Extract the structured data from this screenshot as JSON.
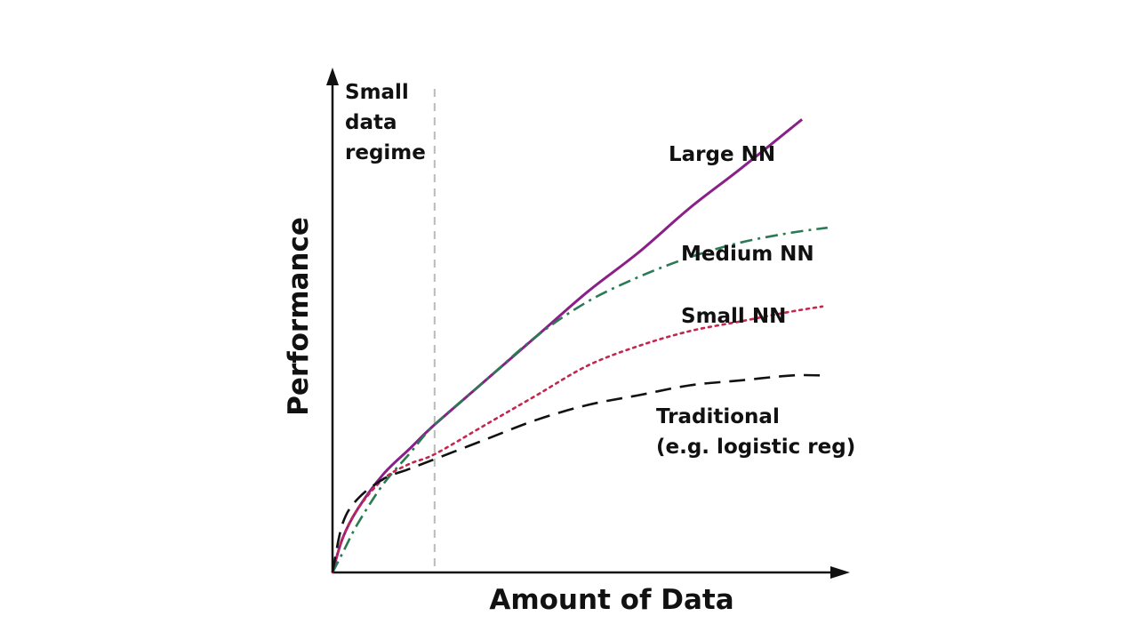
{
  "chart_data": {
    "type": "line",
    "xlabel": "Amount of Data",
    "ylabel": "Performance",
    "regime_label": [
      "Small",
      "data",
      "regime"
    ],
    "x_range": [
      0,
      1
    ],
    "y_range": [
      0,
      1
    ],
    "regime_boundary_x": 0.2,
    "series": [
      {
        "name": "Large NN",
        "label_lines": [
          "Large NN"
        ],
        "style": "solid",
        "color": "#8a1f8a",
        "x": [
          0,
          0.02,
          0.05,
          0.1,
          0.15,
          0.2,
          0.3,
          0.4,
          0.5,
          0.6,
          0.7,
          0.8,
          0.92
        ],
        "y": [
          0,
          0.07,
          0.13,
          0.2,
          0.25,
          0.3,
          0.39,
          0.48,
          0.57,
          0.65,
          0.74,
          0.82,
          0.92
        ]
      },
      {
        "name": "Medium NN",
        "label_lines": [
          "Medium NN"
        ],
        "style": "dashdot",
        "color": "#2a7a55",
        "x": [
          0,
          0.02,
          0.05,
          0.1,
          0.15,
          0.2,
          0.3,
          0.4,
          0.5,
          0.6,
          0.7,
          0.8,
          0.9,
          0.97
        ],
        "y": [
          0,
          0.04,
          0.1,
          0.18,
          0.24,
          0.3,
          0.39,
          0.48,
          0.55,
          0.6,
          0.64,
          0.67,
          0.69,
          0.7
        ]
      },
      {
        "name": "Small NN",
        "label_lines": [
          "Small NN"
        ],
        "style": "dotted",
        "color": "#c0284e",
        "x": [
          0,
          0.02,
          0.05,
          0.1,
          0.15,
          0.2,
          0.3,
          0.4,
          0.5,
          0.6,
          0.7,
          0.8,
          0.9,
          0.96
        ],
        "y": [
          0,
          0.07,
          0.13,
          0.19,
          0.22,
          0.24,
          0.3,
          0.36,
          0.42,
          0.46,
          0.49,
          0.51,
          0.53,
          0.54
        ]
      },
      {
        "name": "Traditional (e.g. logistic reg)",
        "label_lines": [
          "Traditional",
          "(e.g. logistic reg)"
        ],
        "style": "dashed",
        "color": "#111111",
        "x": [
          0,
          0.02,
          0.05,
          0.1,
          0.15,
          0.2,
          0.3,
          0.4,
          0.5,
          0.6,
          0.7,
          0.8,
          0.9,
          0.96
        ],
        "y": [
          0,
          0.1,
          0.15,
          0.19,
          0.21,
          0.23,
          0.27,
          0.31,
          0.34,
          0.36,
          0.38,
          0.39,
          0.4,
          0.4
        ]
      }
    ]
  }
}
